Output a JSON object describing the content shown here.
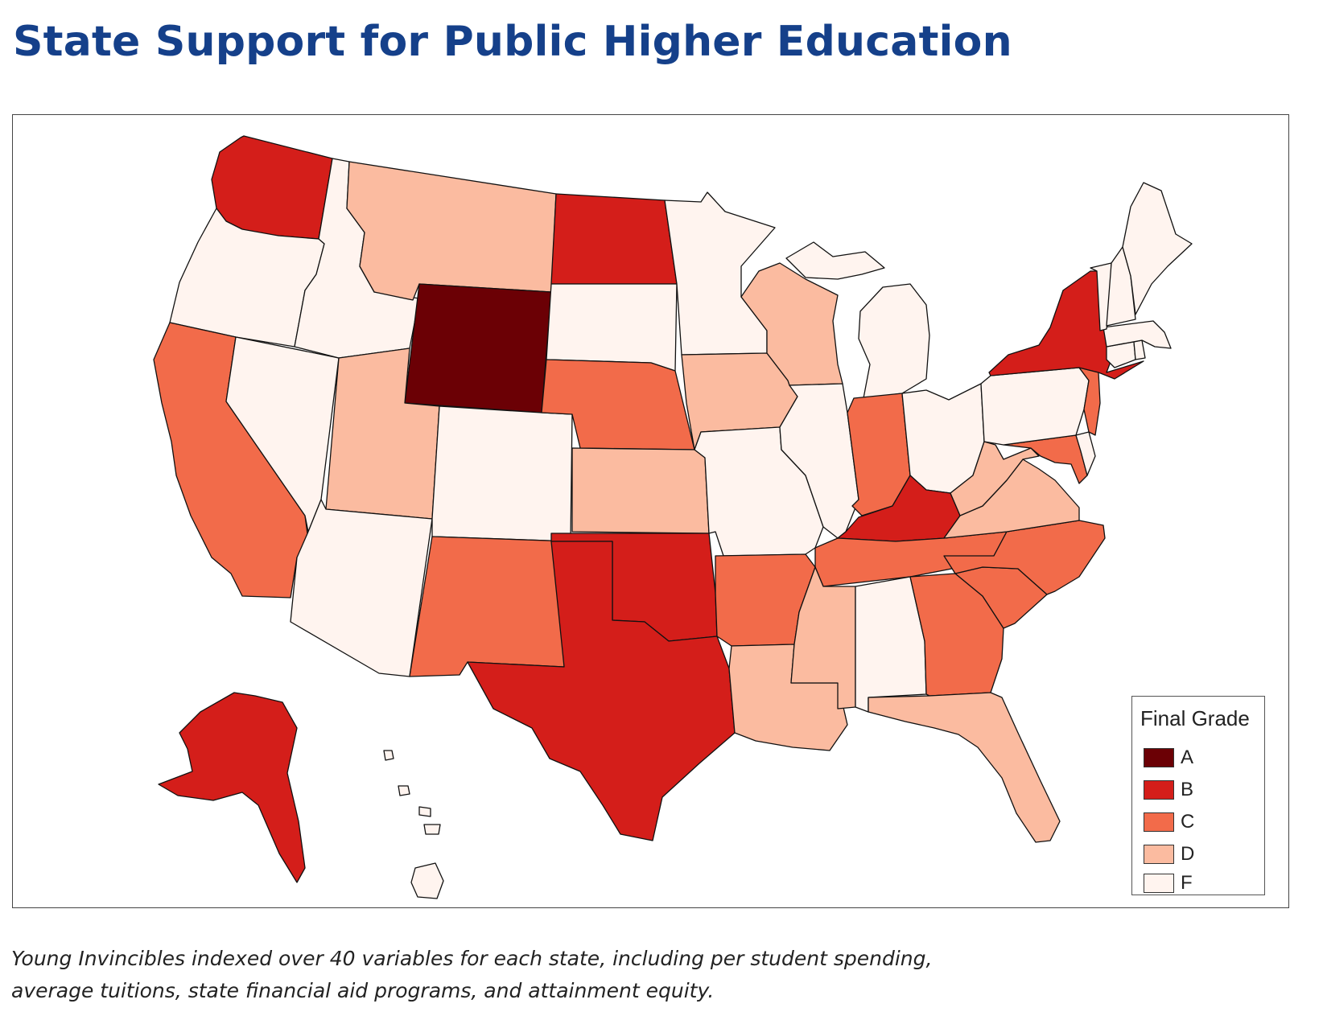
{
  "title": "State Support for Public Higher Education",
  "caption": {
    "line1": "Young Invincibles indexed over 40 variables for each state, including per student spending,",
    "line2": "average tuitions, state financial aid programs, and attainment equity."
  },
  "legend": {
    "title": "Final Grade",
    "grades": [
      {
        "label": "A",
        "color": "#6b0005"
      },
      {
        "label": "B",
        "color": "#d41e1a"
      },
      {
        "label": "C",
        "color": "#f26b4a"
      },
      {
        "label": "D",
        "color": "#fbbba0"
      },
      {
        "label": "F",
        "color": "#fff4ef"
      }
    ]
  },
  "states": {
    "WA": "B",
    "OR": "F",
    "CA": "C",
    "NV": "F",
    "ID": "F",
    "MT": "D",
    "WY": "A",
    "UT": "D",
    "AZ": "F",
    "CO": "F",
    "NM": "C",
    "ND": "B",
    "SD": "F",
    "NE": "C",
    "KS": "D",
    "OK": "B",
    "TX": "B",
    "MN": "F",
    "IA": "D",
    "MO": "F",
    "AR": "C",
    "LA": "D",
    "WI": "D",
    "IL": "F",
    "MI": "F",
    "IN": "C",
    "OH": "F",
    "KY": "B",
    "TN": "C",
    "MS": "D",
    "AL": "F",
    "GA": "C",
    "FL": "D",
    "SC": "C",
    "NC": "C",
    "VA": "D",
    "WV": "D",
    "MD": "C",
    "DE": "F",
    "PA": "F",
    "NJ": "C",
    "NY": "B",
    "CT": "F",
    "RI": "F",
    "MA": "F",
    "VT": "F",
    "NH": "F",
    "ME": "F",
    "AK": "B",
    "HI": "F"
  }
}
